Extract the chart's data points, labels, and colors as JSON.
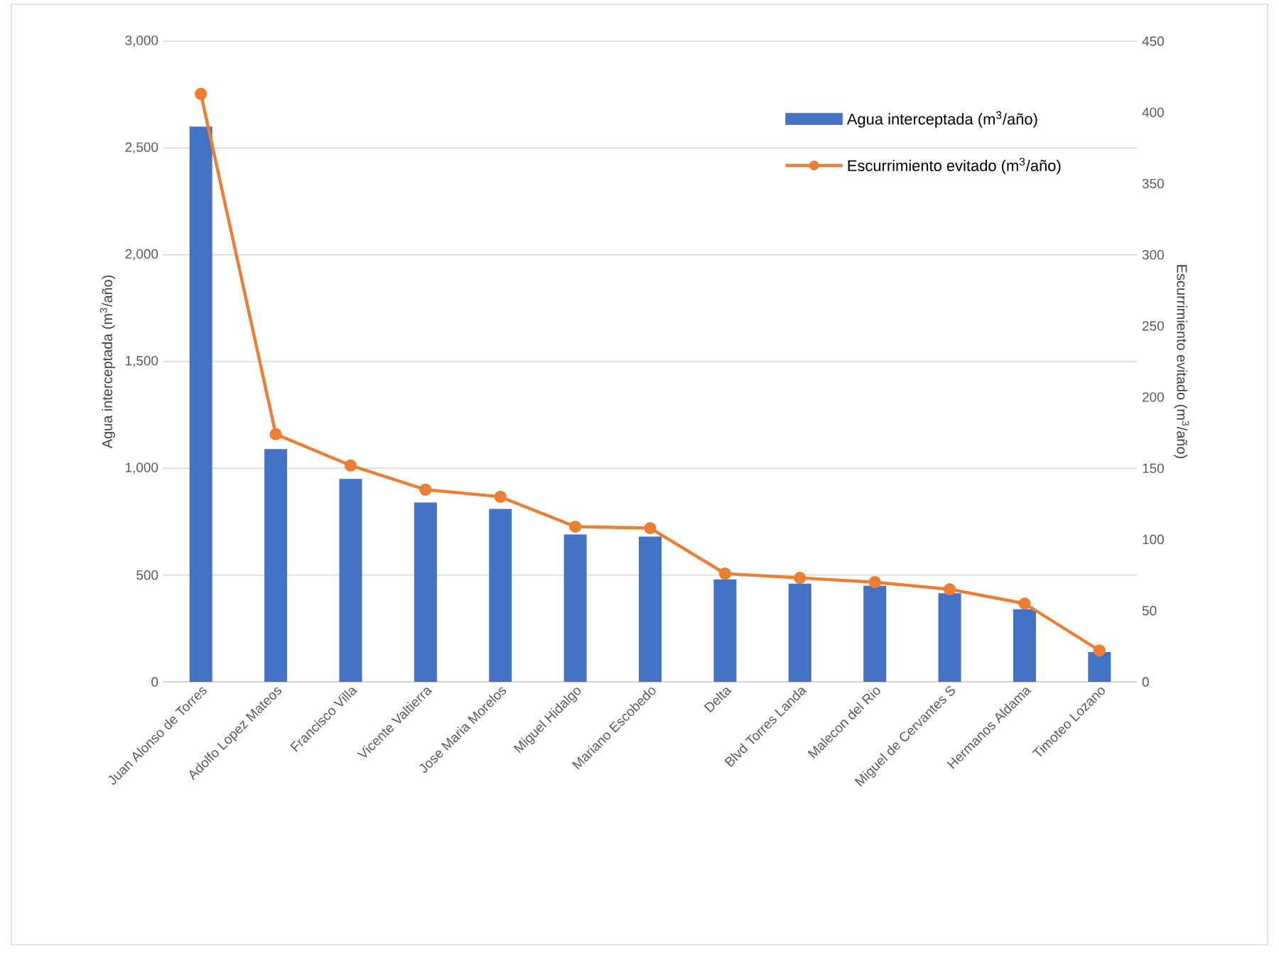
{
  "chart_data": {
    "type": "bar",
    "ylabel": "Agua interceptada (m$^{3}$/año)",
    "y2label": "Escurrimiento evitado (m$^{3}$/año)",
    "categories": [
      "Juan Alonso de Torres",
      "Adolfo Lopez Mateos",
      "Francisco Villa",
      "Vicente Valtierra",
      "Jose Maria Morelos",
      "Miguel Hidalgo",
      "Mariano Escobedo",
      "Delta",
      "Blvd Torres Landa",
      "Malecon del Rio",
      "Miguel de Cervantes S",
      "Hermanos Aldama",
      "Timoteo Lozano"
    ],
    "series": [
      {
        "name": "Agua interceptada (m$^{3}$/año)",
        "color": "#4472c4",
        "values": [
          2600,
          1090,
          950,
          840,
          810,
          690,
          680,
          480,
          460,
          450,
          415,
          340,
          140
        ]
      },
      {
        "name": "Escurrimiento evitado (m$^{3}$/año)",
        "type": "line",
        "axis": "y2",
        "color": "#ed7d31",
        "marker": "circle",
        "values": [
          413,
          174,
          152,
          135,
          130,
          109,
          108,
          76,
          73,
          70,
          65,
          55,
          22
        ]
      }
    ],
    "ylim": [
      0,
      3000
    ],
    "yticks": [
      {
        "value": 0,
        "label": "0"
      },
      {
        "value": 500,
        "label": "500"
      },
      {
        "value": 1000,
        "label": "1,000"
      },
      {
        "value": 1500,
        "label": "1,500"
      },
      {
        "value": 2000,
        "label": "2,000"
      },
      {
        "value": 2500,
        "label": "2,500"
      },
      {
        "value": 3000,
        "label": "3,000"
      }
    ],
    "y2lim": [
      0,
      450
    ],
    "y2ticks": [
      0,
      50,
      100,
      150,
      200,
      250,
      300,
      350,
      400,
      450
    ],
    "grid": "y",
    "legend": "top right"
  }
}
